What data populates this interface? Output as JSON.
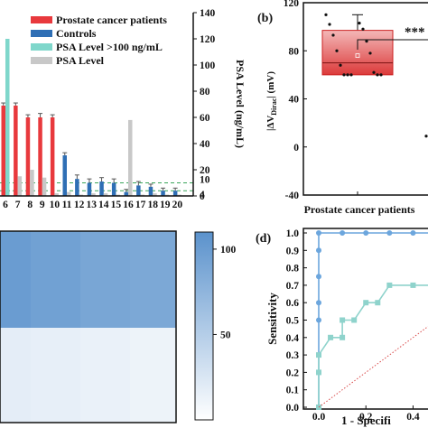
{
  "chart_data": [
    {
      "panel": "a",
      "type": "bar",
      "categories": [
        "6",
        "7",
        "8",
        "9",
        "10",
        "11",
        "12",
        "13",
        "14",
        "15",
        "16",
        "17",
        "18",
        "19",
        "20"
      ],
      "series": [
        {
          "name": "Prostate cancer patients",
          "color": "#e8393d",
          "values": [
            69,
            69,
            60,
            60,
            60,
            null,
            null,
            null,
            null,
            null,
            null,
            null,
            null,
            null,
            null
          ],
          "errors": [
            2,
            2,
            2,
            3,
            2,
            null,
            null,
            null,
            null,
            null,
            null,
            null,
            null,
            null,
            null
          ]
        },
        {
          "name": "Controls",
          "color": "#2f6fb5",
          "values": [
            null,
            null,
            null,
            null,
            null,
            31,
            13,
            10,
            11,
            10,
            3,
            8,
            7,
            4,
            4
          ],
          "errors": [
            null,
            null,
            null,
            null,
            null,
            2,
            3,
            3,
            3,
            3,
            2,
            3,
            2,
            2,
            2
          ]
        },
        {
          "name": "PSA Level >100  ng/mL",
          "color": "#7fd7cb",
          "values": [
            120,
            null,
            null,
            null,
            null,
            null,
            null,
            null,
            null,
            null,
            null,
            null,
            null,
            null,
            null
          ]
        },
        {
          "name": "PSA Level",
          "color": "#c8c8c8",
          "values": [
            20,
            15,
            20,
            14,
            2,
            3,
            1,
            2,
            2,
            1,
            58,
            1,
            2,
            1,
            1
          ]
        }
      ],
      "y2label": "PSA Level (ng/mL)",
      "y2lim": [
        0,
        140
      ],
      "y2ticks": [
        "0",
        "20",
        "40",
        "60",
        "80",
        "100",
        "120",
        "140"
      ],
      "extra_ticks": [
        "10",
        "4"
      ],
      "legend": "top-left"
    },
    {
      "panel": "b",
      "type": "box",
      "categories": [
        "Prostate cancer patients"
      ],
      "ylim": [
        -40,
        120
      ],
      "yticks": [
        "-40",
        "0",
        "40",
        "80",
        "120"
      ],
      "box": {
        "q1": 60,
        "median": 70,
        "q3": 97,
        "mean": 76,
        "whisker_low": 59,
        "whisker_high": 110
      },
      "points": [
        110,
        103,
        102,
        98,
        93,
        88,
        80,
        78,
        68,
        62,
        60,
        60,
        60,
        60,
        60
      ],
      "other_group_point": 9,
      "significance": "***"
    },
    {
      "panel": "c",
      "type": "heatmap",
      "cell_values": [
        [
          100,
          95,
          90,
          88
        ],
        [
          18,
          16,
          14,
          12
        ]
      ],
      "colorbar_ticks": [
        "50",
        "100"
      ],
      "colorbar_range": [
        0,
        110
      ]
    },
    {
      "panel": "d",
      "type": "line",
      "xlabel": "1 - Specifi",
      "ylabel": "Sensitivity",
      "xlim": [
        0,
        0.5
      ],
      "ylim": [
        0,
        1
      ],
      "xticks": [
        "0.0",
        "0.2",
        "0.4"
      ],
      "yticks": [
        "0.0",
        "0.1",
        "0.2",
        "0.3",
        "0.4",
        "0.5",
        "0.6",
        "0.7",
        "0.8",
        "0.9",
        "1.0"
      ],
      "series": [
        {
          "color": "#6ca6dd",
          "x": [
            0,
            0,
            0,
            0,
            0,
            0,
            0,
            0,
            0.1,
            0.2,
            0.3,
            0.4,
            0.5
          ],
          "y": [
            0,
            0.2,
            0.3,
            0.5,
            0.6,
            0.75,
            0.9,
            1.0,
            1.0,
            1.0,
            1.0,
            1.0,
            1.0
          ]
        },
        {
          "color": "#8fd3cc",
          "x": [
            0,
            0,
            0,
            0.05,
            0.1,
            0.1,
            0.15,
            0.2,
            0.25,
            0.3,
            0.4,
            0.5
          ],
          "y": [
            0,
            0.2,
            0.3,
            0.4,
            0.4,
            0.5,
            0.5,
            0.6,
            0.6,
            0.7,
            0.7,
            0.7
          ]
        },
        {
          "color": "#d94a4a",
          "style": "dotted",
          "x": [
            0,
            0.5
          ],
          "y": [
            0,
            0.5
          ]
        }
      ]
    }
  ],
  "labels": {
    "panel_b": "(b)",
    "panel_d": "(d)",
    "b_ylabel_pre": "|ΔV",
    "b_ylabel_sub": "Dirac",
    "b_ylabel_post": "| (mV)"
  }
}
